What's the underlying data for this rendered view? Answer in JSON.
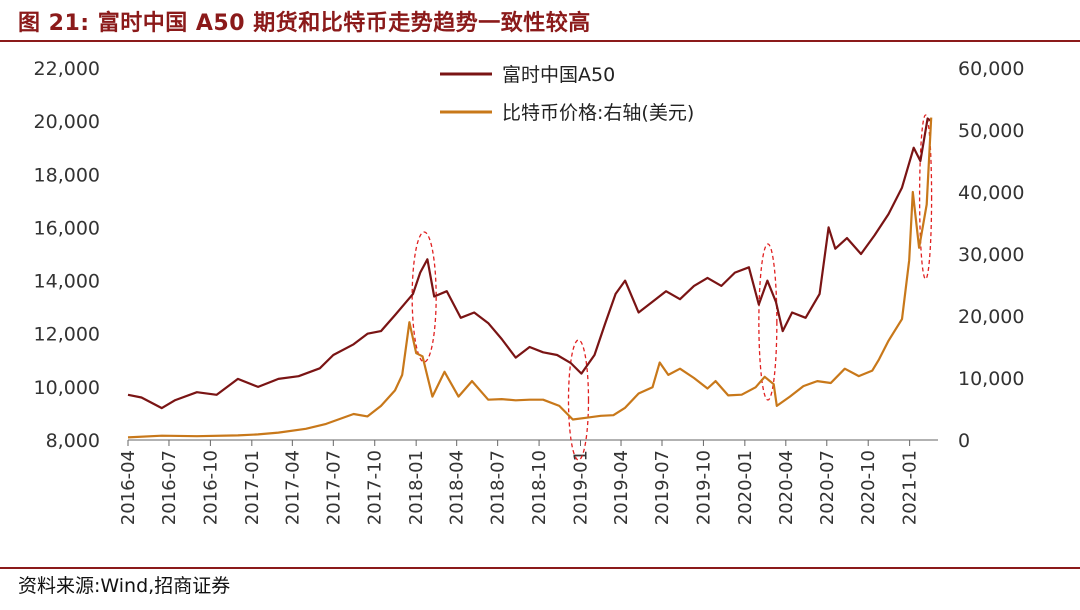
{
  "title": "图 21:  富时中国 A50 期货和比特币走势趋势一致性较高",
  "source": "资料来源:Wind,招商证券",
  "colors": {
    "accent": "#8b1a1a",
    "a50": "#7a1414",
    "btc": "#c8781a",
    "highlight": "#e02020"
  },
  "chart_data": {
    "type": "line",
    "x_labels": [
      "2016-04",
      "2016-07",
      "2016-10",
      "2017-01",
      "2017-04",
      "2017-07",
      "2017-10",
      "2018-01",
      "2018-04",
      "2018-07",
      "2018-10",
      "2019-01",
      "2019-04",
      "2019-07",
      "2019-10",
      "2020-01",
      "2020-04",
      "2020-07",
      "2020-10",
      "2021-01"
    ],
    "y_left": {
      "min": 8000,
      "max": 22000,
      "ticks": [
        "8,000",
        "10,000",
        "12,000",
        "14,000",
        "16,000",
        "18,000",
        "20,000",
        "22,000"
      ]
    },
    "y_right": {
      "min": 0,
      "max": 60000,
      "ticks": [
        "0",
        "10,000",
        "20,000",
        "30,000",
        "40,000",
        "50,000",
        "60,000"
      ]
    },
    "series": [
      {
        "name": "富时中国A50",
        "axis": "left",
        "points": [
          [
            "2016-04-01",
            9700
          ],
          [
            "2016-05-01",
            9600
          ],
          [
            "2016-06-15",
            9200
          ],
          [
            "2016-07-15",
            9500
          ],
          [
            "2016-09-01",
            9800
          ],
          [
            "2016-10-15",
            9700
          ],
          [
            "2016-12-01",
            10300
          ],
          [
            "2017-01-15",
            10000
          ],
          [
            "2017-03-01",
            10300
          ],
          [
            "2017-04-15",
            10400
          ],
          [
            "2017-06-01",
            10700
          ],
          [
            "2017-07-01",
            11200
          ],
          [
            "2017-08-15",
            11600
          ],
          [
            "2017-09-15",
            12000
          ],
          [
            "2017-10-15",
            12100
          ],
          [
            "2017-11-15",
            12700
          ],
          [
            "2017-12-10",
            13200
          ],
          [
            "2017-12-25",
            13500
          ],
          [
            "2018-01-10",
            14300
          ],
          [
            "2018-01-26",
            14800
          ],
          [
            "2018-02-10",
            13400
          ],
          [
            "2018-03-10",
            13600
          ],
          [
            "2018-04-10",
            12600
          ],
          [
            "2018-05-10",
            12800
          ],
          [
            "2018-06-10",
            12400
          ],
          [
            "2018-07-10",
            11800
          ],
          [
            "2018-08-10",
            11100
          ],
          [
            "2018-09-10",
            11500
          ],
          [
            "2018-10-10",
            11300
          ],
          [
            "2018-11-10",
            11200
          ],
          [
            "2018-12-10",
            10900
          ],
          [
            "2019-01-03",
            10500
          ],
          [
            "2019-02-01",
            11200
          ],
          [
            "2019-02-25",
            12400
          ],
          [
            "2019-03-20",
            13500
          ],
          [
            "2019-04-10",
            14000
          ],
          [
            "2019-05-10",
            12800
          ],
          [
            "2019-06-10",
            13200
          ],
          [
            "2019-07-10",
            13600
          ],
          [
            "2019-08-10",
            13300
          ],
          [
            "2019-09-10",
            13800
          ],
          [
            "2019-10-10",
            14100
          ],
          [
            "2019-11-10",
            13800
          ],
          [
            "2019-12-10",
            14300
          ],
          [
            "2020-01-10",
            14500
          ],
          [
            "2020-02-01",
            13100
          ],
          [
            "2020-02-20",
            14000
          ],
          [
            "2020-03-10",
            13200
          ],
          [
            "2020-03-25",
            12100
          ],
          [
            "2020-04-15",
            12800
          ],
          [
            "2020-05-15",
            12600
          ],
          [
            "2020-06-15",
            13500
          ],
          [
            "2020-07-05",
            16000
          ],
          [
            "2020-07-20",
            15200
          ],
          [
            "2020-08-15",
            15600
          ],
          [
            "2020-09-15",
            15000
          ],
          [
            "2020-10-15",
            15700
          ],
          [
            "2020-11-15",
            16500
          ],
          [
            "2020-12-15",
            17500
          ],
          [
            "2021-01-10",
            19000
          ],
          [
            "2021-01-25",
            18500
          ],
          [
            "2021-02-10",
            20100
          ],
          [
            "2021-02-18",
            20000
          ]
        ]
      },
      {
        "name": "比特币价格:右轴(美元)",
        "axis": "right",
        "points": [
          [
            "2016-04-01",
            420
          ],
          [
            "2016-06-15",
            700
          ],
          [
            "2016-09-01",
            610
          ],
          [
            "2016-12-01",
            750
          ],
          [
            "2017-01-15",
            900
          ],
          [
            "2017-03-01",
            1200
          ],
          [
            "2017-05-01",
            1800
          ],
          [
            "2017-06-15",
            2600
          ],
          [
            "2017-08-15",
            4200
          ],
          [
            "2017-09-15",
            3800
          ],
          [
            "2017-10-15",
            5500
          ],
          [
            "2017-11-15",
            8000
          ],
          [
            "2017-12-01",
            10500
          ],
          [
            "2017-12-17",
            19000
          ],
          [
            "2018-01-01",
            14000
          ],
          [
            "2018-01-15",
            13500
          ],
          [
            "2018-02-06",
            7000
          ],
          [
            "2018-03-05",
            11000
          ],
          [
            "2018-04-05",
            7000
          ],
          [
            "2018-05-05",
            9500
          ],
          [
            "2018-06-10",
            6500
          ],
          [
            "2018-07-10",
            6600
          ],
          [
            "2018-08-10",
            6400
          ],
          [
            "2018-09-10",
            6500
          ],
          [
            "2018-10-10",
            6500
          ],
          [
            "2018-11-15",
            5500
          ],
          [
            "2018-12-15",
            3300
          ],
          [
            "2019-01-15",
            3600
          ],
          [
            "2019-02-15",
            3900
          ],
          [
            "2019-03-15",
            4000
          ],
          [
            "2019-04-10",
            5200
          ],
          [
            "2019-05-10",
            7500
          ],
          [
            "2019-06-10",
            8500
          ],
          [
            "2019-06-26",
            12500
          ],
          [
            "2019-07-15",
            10500
          ],
          [
            "2019-08-10",
            11500
          ],
          [
            "2019-09-10",
            10000
          ],
          [
            "2019-10-10",
            8300
          ],
          [
            "2019-10-28",
            9500
          ],
          [
            "2019-11-25",
            7200
          ],
          [
            "2019-12-25",
            7300
          ],
          [
            "2020-01-25",
            8500
          ],
          [
            "2020-02-14",
            10200
          ],
          [
            "2020-03-05",
            9000
          ],
          [
            "2020-03-12",
            5500
          ],
          [
            "2020-04-10",
            7000
          ],
          [
            "2020-05-10",
            8700
          ],
          [
            "2020-06-10",
            9500
          ],
          [
            "2020-07-10",
            9200
          ],
          [
            "2020-08-10",
            11500
          ],
          [
            "2020-09-10",
            10300
          ],
          [
            "2020-10-10",
            11200
          ],
          [
            "2020-10-25",
            13000
          ],
          [
            "2020-11-15",
            16000
          ],
          [
            "2020-12-15",
            19500
          ],
          [
            "2020-12-31",
            29000
          ],
          [
            "2021-01-08",
            40000
          ],
          [
            "2021-01-22",
            31000
          ],
          [
            "2021-02-08",
            38000
          ],
          [
            "2021-02-18",
            52000
          ]
        ]
      }
    ],
    "legend_position": "top-center",
    "highlights": [
      "2018-01",
      "2019-01",
      "2020-03",
      "2021-02"
    ]
  }
}
